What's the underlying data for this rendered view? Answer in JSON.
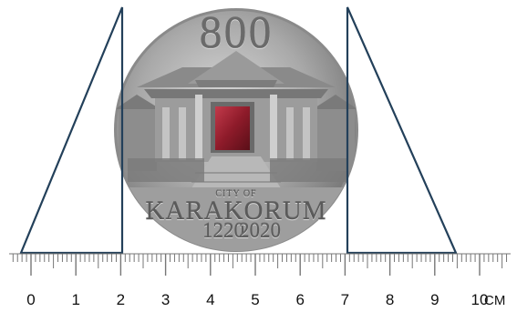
{
  "coin": {
    "denomination": "800",
    "city_prefix": "CITY OF",
    "city_name": "KARAKORUM",
    "year_start": "1220",
    "year_end": "2020",
    "metal_color": "#a9a9a9",
    "inlay_color": "#8e1b2a"
  },
  "ruler": {
    "labels": [
      "0",
      "1",
      "2",
      "3",
      "4",
      "5",
      "6",
      "7",
      "8",
      "9",
      "10"
    ],
    "unit": "CM",
    "line_color": "#23405a"
  }
}
